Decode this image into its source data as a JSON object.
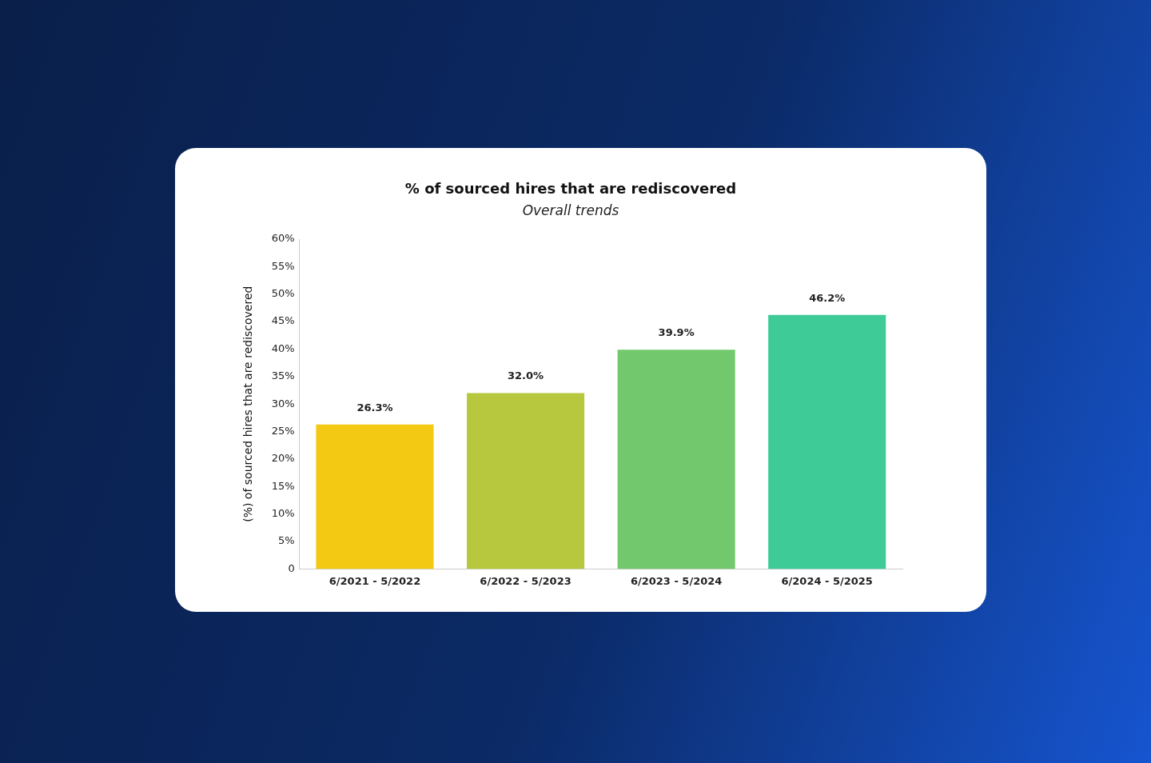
{
  "chart_data": {
    "type": "bar",
    "title": "% of sourced hires that are rediscovered",
    "subtitle": "Overall trends",
    "ylabel": "(%) of sourced hires that are rediscovered",
    "categories": [
      "6/2021 - 5/2022",
      "6/2022 - 5/2023",
      "6/2023 - 5/2024",
      "6/2024 - 5/2025"
    ],
    "values": [
      26.3,
      32.0,
      39.9,
      46.2
    ],
    "colors": [
      "#f4c914",
      "#b8c83e",
      "#72c86c",
      "#3ecb98"
    ],
    "value_labels": [
      "26.3%",
      "32.0%",
      "39.9%",
      "46.2%"
    ],
    "ylim": [
      0,
      60
    ],
    "yticks": [
      0,
      {
        "value": 5,
        "label": "5%"
      },
      {
        "value": 10,
        "label": "10%"
      },
      {
        "value": 15,
        "label": "15%"
      },
      {
        "value": 20,
        "label": "20%"
      },
      {
        "value": 25,
        "label": "25%"
      },
      {
        "value": 30,
        "label": "30%"
      },
      {
        "value": 35,
        "label": "35%"
      },
      {
        "value": 40,
        "label": "40%"
      },
      {
        "value": 45,
        "label": "45%"
      },
      {
        "value": 50,
        "label": "50%"
      },
      {
        "value": 55,
        "label": "55%"
      },
      {
        "value": 60,
        "label": "60%"
      }
    ],
    "grid": false,
    "legend": false
  }
}
